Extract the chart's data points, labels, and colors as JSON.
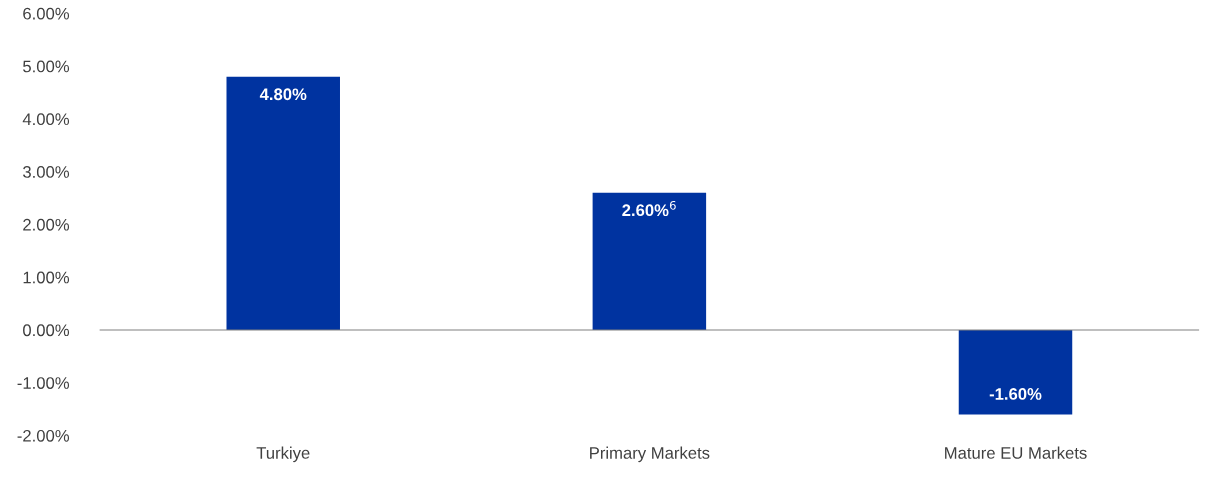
{
  "chart_data": {
    "type": "bar",
    "categories": [
      "Turkiye",
      "Primary Markets",
      "Mature EU Markets"
    ],
    "values": [
      4.8,
      2.6,
      -1.6
    ],
    "value_labels": [
      "4.80%",
      "2.60%$^{6}$",
      "-1.60%"
    ],
    "color": "#0033a0",
    "ylim": [
      -2,
      6
    ],
    "yticks": [
      {
        "value": -2,
        "label": "-2.00%"
      },
      {
        "value": -1,
        "label": "-1.00%"
      },
      {
        "value": 0,
        "label": "0.00%"
      },
      {
        "value": 1,
        "label": "1.00%"
      },
      {
        "value": 2,
        "label": "2.00%"
      },
      {
        "value": 3,
        "label": "3.00%"
      },
      {
        "value": 4,
        "label": "4.00%"
      },
      {
        "value": 5,
        "label": "5.00%"
      },
      {
        "value": 6,
        "label": "6.00%"
      }
    ],
    "legend": false
  }
}
